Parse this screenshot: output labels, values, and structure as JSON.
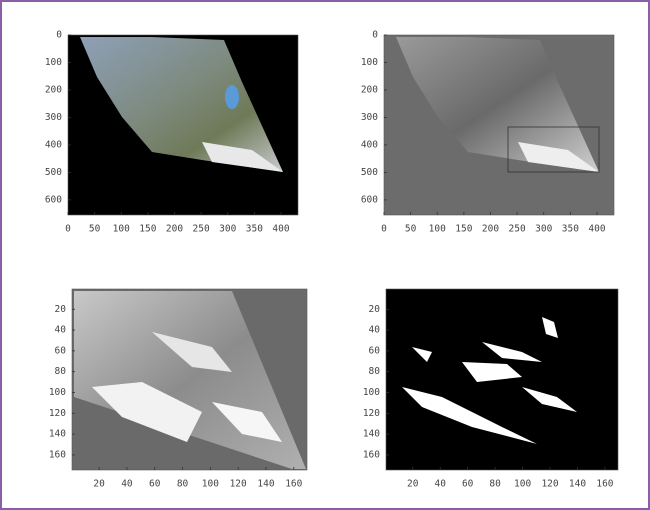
{
  "chart_data": [
    {
      "type": "image",
      "xlim": [
        0,
        432
      ],
      "ylim": [
        655,
        0
      ],
      "xticks": [
        0,
        50,
        100,
        150,
        200,
        250,
        300,
        350,
        400
      ],
      "yticks": [
        0,
        100,
        200,
        300,
        400,
        500,
        600
      ]
    },
    {
      "type": "image",
      "xlim": [
        0,
        432
      ],
      "ylim": [
        655,
        0
      ],
      "xticks": [
        0,
        50,
        100,
        150,
        200,
        250,
        300,
        350,
        400
      ],
      "yticks": [
        0,
        100,
        200,
        300,
        400,
        500,
        600
      ]
    },
    {
      "type": "image",
      "xlim": [
        0.5,
        169.5
      ],
      "ylim": [
        174.5,
        0.5
      ],
      "xticks": [
        20,
        40,
        60,
        80,
        100,
        120,
        140,
        160
      ],
      "yticks": [
        20,
        40,
        60,
        80,
        100,
        120,
        140,
        160
      ]
    },
    {
      "type": "image",
      "xlim": [
        0.5,
        169.5
      ],
      "ylim": [
        174.5,
        0.5
      ],
      "xticks": [
        20,
        40,
        60,
        80,
        100,
        120,
        140,
        160
      ],
      "yticks": [
        20,
        40,
        60,
        80,
        100,
        120,
        140,
        160
      ]
    }
  ]
}
